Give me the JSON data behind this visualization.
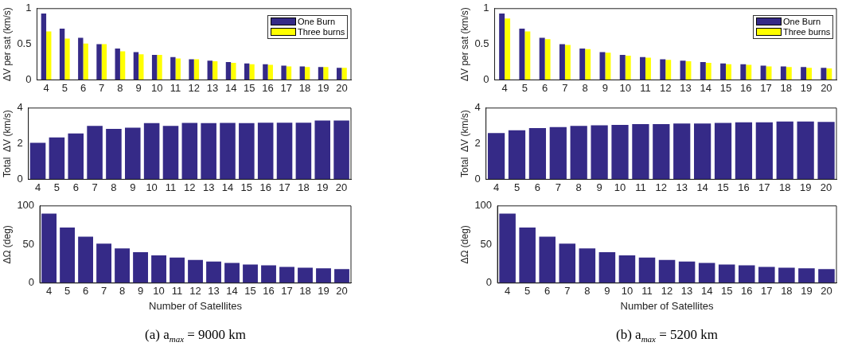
{
  "chart_data": [
    {
      "type": "bar",
      "ylabel": "ΔV per sat (km/s)",
      "categories": [
        "4",
        "5",
        "6",
        "7",
        "8",
        "9",
        "10",
        "11",
        "12",
        "13",
        "14",
        "15",
        "16",
        "17",
        "18",
        "19",
        "20"
      ],
      "ylim": [
        0,
        1
      ],
      "yticks": [
        0,
        0.5,
        1
      ],
      "grid": false,
      "legend": "top right",
      "series": [
        {
          "name": "One Burn",
          "color": "#352a87",
          "values": [
            0.93,
            0.72,
            0.59,
            0.5,
            0.44,
            0.39,
            0.35,
            0.32,
            0.29,
            0.27,
            0.25,
            0.23,
            0.22,
            0.2,
            0.19,
            0.18,
            0.17
          ]
        },
        {
          "name": "Three burns",
          "color": "#ffff00",
          "values": [
            0.68,
            0.58,
            0.51,
            0.5,
            0.4,
            0.36,
            0.35,
            0.3,
            0.29,
            0.26,
            0.24,
            0.22,
            0.21,
            0.19,
            0.18,
            0.18,
            0.17
          ]
        }
      ]
    },
    {
      "type": "bar",
      "ylabel": "Total  ΔV (km/s)",
      "categories": [
        "4",
        "5",
        "6",
        "7",
        "8",
        "9",
        "10",
        "11",
        "12",
        "13",
        "14",
        "15",
        "16",
        "17",
        "18",
        "19",
        "20"
      ],
      "ylim": [
        0,
        4
      ],
      "yticks": [
        0,
        2,
        4
      ],
      "grid": false,
      "color": "#352a87",
      "values": [
        2.05,
        2.35,
        2.57,
        3.0,
        2.83,
        2.9,
        3.15,
        3.0,
        3.17,
        3.15,
        3.16,
        3.15,
        3.18,
        3.18,
        3.18,
        3.3,
        3.3
      ]
    },
    {
      "type": "bar",
      "ylabel": "ΔΩ (deg)",
      "xlabel": "Number of Satellites",
      "categories": [
        "4",
        "5",
        "6",
        "7",
        "8",
        "9",
        "10",
        "11",
        "12",
        "13",
        "14",
        "15",
        "16",
        "17",
        "18",
        "19",
        "20"
      ],
      "ylim": [
        0,
        100
      ],
      "yticks": [
        0,
        50,
        100
      ],
      "grid": false,
      "color": "#352a87",
      "values": [
        90,
        72,
        60,
        51,
        45,
        40,
        36,
        33,
        30,
        28,
        26,
        24,
        23,
        21,
        20,
        19,
        18
      ],
      "annotations": [
        "(a)  a$_{max}$ = 9000 km"
      ]
    },
    {
      "type": "bar",
      "ylabel": "ΔV per sat (km/s)",
      "categories": [
        "4",
        "5",
        "6",
        "7",
        "8",
        "9",
        "10",
        "11",
        "12",
        "13",
        "14",
        "15",
        "16",
        "17",
        "18",
        "19",
        "20"
      ],
      "ylim": [
        0,
        1
      ],
      "yticks": [
        0,
        0.5,
        1
      ],
      "grid": false,
      "legend": "top right",
      "series": [
        {
          "name": "One Burn",
          "color": "#352a87",
          "values": [
            0.93,
            0.72,
            0.59,
            0.5,
            0.44,
            0.39,
            0.35,
            0.32,
            0.29,
            0.27,
            0.25,
            0.23,
            0.22,
            0.2,
            0.19,
            0.18,
            0.17
          ]
        },
        {
          "name": "Three burns",
          "color": "#ffff00",
          "values": [
            0.86,
            0.68,
            0.57,
            0.49,
            0.43,
            0.38,
            0.34,
            0.31,
            0.28,
            0.26,
            0.24,
            0.22,
            0.21,
            0.19,
            0.18,
            0.17,
            0.16
          ]
        }
      ]
    },
    {
      "type": "bar",
      "ylabel": "Total  ΔV (km/s)",
      "categories": [
        "4",
        "5",
        "6",
        "7",
        "8",
        "9",
        "10",
        "11",
        "12",
        "13",
        "14",
        "15",
        "16",
        "17",
        "18",
        "19",
        "20"
      ],
      "ylim": [
        0,
        4
      ],
      "yticks": [
        0,
        2,
        4
      ],
      "grid": false,
      "color": "#352a87",
      "values": [
        2.6,
        2.75,
        2.87,
        2.93,
        3.0,
        3.03,
        3.05,
        3.1,
        3.1,
        3.13,
        3.13,
        3.17,
        3.2,
        3.2,
        3.24,
        3.24,
        3.22
      ]
    },
    {
      "type": "bar",
      "ylabel": "ΔΩ (deg)",
      "xlabel": "Number of Satellites",
      "categories": [
        "4",
        "5",
        "6",
        "7",
        "8",
        "9",
        "10",
        "11",
        "12",
        "13",
        "14",
        "15",
        "16",
        "17",
        "18",
        "19",
        "20"
      ],
      "ylim": [
        0,
        100
      ],
      "yticks": [
        0,
        50,
        100
      ],
      "grid": false,
      "color": "#352a87",
      "values": [
        90,
        72,
        60,
        51,
        45,
        40,
        36,
        33,
        30,
        28,
        26,
        24,
        23,
        21,
        20,
        19,
        18
      ],
      "annotations": [
        "(b)  a$_{max}$ = 5200 km"
      ]
    }
  ]
}
